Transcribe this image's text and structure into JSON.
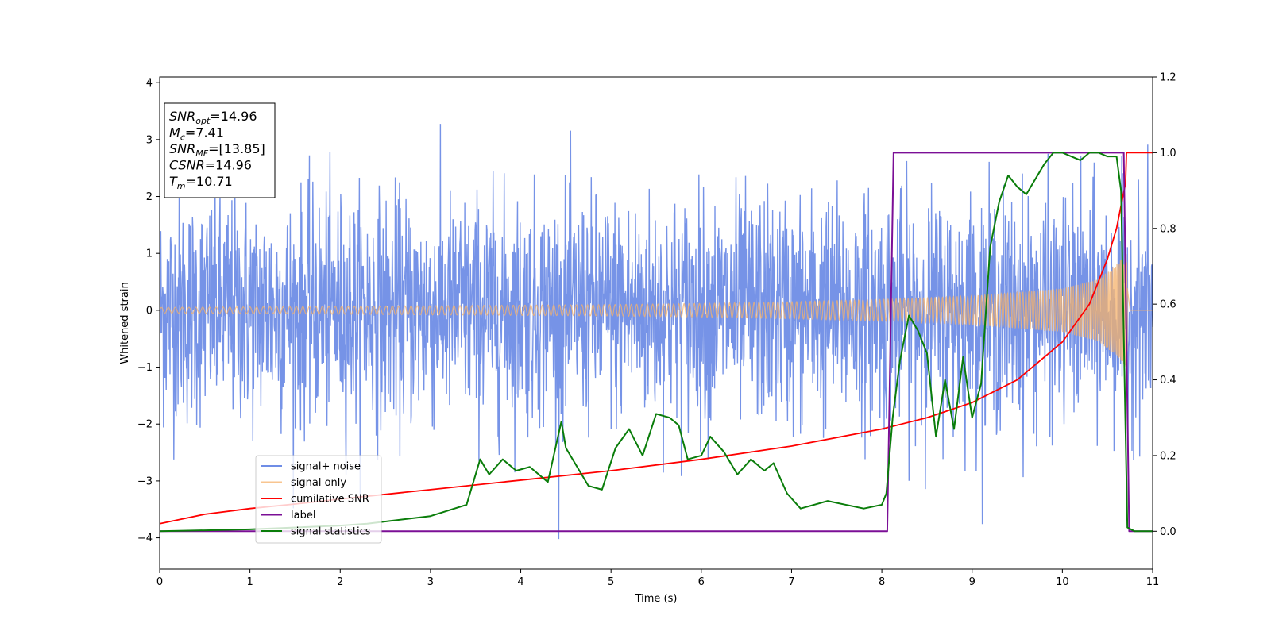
{
  "chart_data": {
    "type": "line",
    "xlabel": "Time (s)",
    "ylabel": "Whitened strain",
    "xlim": [
      0,
      11
    ],
    "ylim_left": [
      -4.55,
      4.1
    ],
    "ylim_right": [
      -0.1,
      1.2
    ],
    "x_ticks": [
      0,
      1,
      2,
      3,
      4,
      5,
      6,
      7,
      8,
      9,
      10,
      11
    ],
    "y_left_ticks": [
      -4,
      -3,
      -2,
      -1,
      0,
      1,
      2,
      3,
      4
    ],
    "y_right_ticks": [
      0.0,
      0.2,
      0.4,
      0.6,
      0.8,
      1.0,
      1.2
    ],
    "x_tick_labels": [
      "0",
      "1",
      "2",
      "3",
      "4",
      "5",
      "6",
      "7",
      "8",
      "9",
      "10",
      "11"
    ],
    "y_left_tick_labels": [
      "−4",
      "−3",
      "−2",
      "−1",
      "0",
      "1",
      "2",
      "3",
      "4"
    ],
    "y_right_tick_labels": [
      "0.0",
      "0.2",
      "0.4",
      "0.6",
      "0.8",
      "1.0",
      "1.2"
    ],
    "annotations": [
      {
        "name": "SNR",
        "sub": "opt",
        "value": "=14.96"
      },
      {
        "name": "M",
        "sub": "c",
        "value": "=7.41"
      },
      {
        "name": "SNR",
        "sub": "MF",
        "value": "=[13.85]"
      },
      {
        "name": "CSNR",
        "sub": "",
        "value": "=14.96"
      },
      {
        "name": "T",
        "sub": "m",
        "value": "=10.71"
      }
    ],
    "legend_position": "lower-left",
    "series": [
      {
        "name": "signal+ noise",
        "color": "#6f8de6",
        "axis": "left",
        "kind": "noisy strain",
        "std": 1.0,
        "range_approx": [
          -4.2,
          3.5
        ]
      },
      {
        "name": "signal only",
        "color": "#f5b26b",
        "axis": "left",
        "kind": "chirp",
        "amp_x": [
          0,
          1,
          2,
          3,
          4,
          5,
          6,
          7,
          8,
          9,
          10,
          10.4,
          10.6,
          10.71,
          10.75,
          11
        ],
        "amp_y": [
          0.05,
          0.06,
          0.07,
          0.08,
          0.09,
          0.1,
          0.12,
          0.15,
          0.19,
          0.25,
          0.38,
          0.55,
          0.8,
          1.0,
          0,
          0
        ]
      },
      {
        "name": "cumilative SNR",
        "color": "#ff0000",
        "axis": "right",
        "x": [
          0,
          0.5,
          1,
          1.5,
          2,
          3,
          4,
          5,
          6,
          7,
          8,
          8.5,
          9,
          9.5,
          10,
          10.3,
          10.5,
          10.6,
          10.7,
          10.71,
          11
        ],
        "y": [
          0.02,
          0.045,
          0.06,
          0.072,
          0.085,
          0.11,
          0.135,
          0.16,
          0.19,
          0.225,
          0.27,
          0.3,
          0.34,
          0.4,
          0.5,
          0.6,
          0.72,
          0.8,
          0.92,
          1.0,
          1.0
        ]
      },
      {
        "name": "label",
        "color": "#7b0f96",
        "axis": "right",
        "x": [
          0,
          8.06,
          8.13,
          10.68,
          10.74,
          11
        ],
        "y": [
          0,
          0,
          1,
          1,
          0,
          0
        ]
      },
      {
        "name": "signal statistics",
        "color": "#0a7d0a",
        "axis": "right",
        "x": [
          0,
          1,
          2,
          2.3,
          3,
          3.4,
          3.55,
          3.65,
          3.8,
          3.95,
          4.1,
          4.3,
          4.45,
          4.5,
          4.6,
          4.75,
          4.9,
          5.05,
          5.2,
          5.35,
          5.5,
          5.65,
          5.75,
          5.85,
          6.0,
          6.1,
          6.25,
          6.4,
          6.55,
          6.7,
          6.8,
          6.95,
          7.1,
          7.25,
          7.4,
          7.6,
          7.8,
          8.0,
          8.05,
          8.12,
          8.2,
          8.3,
          8.4,
          8.5,
          8.6,
          8.7,
          8.8,
          8.9,
          9.0,
          9.1,
          9.2,
          9.3,
          9.4,
          9.5,
          9.6,
          9.7,
          9.8,
          9.9,
          10.0,
          10.1,
          10.2,
          10.3,
          10.4,
          10.5,
          10.6,
          10.65,
          10.72,
          10.8,
          11
        ],
        "y": [
          0.0,
          0.005,
          0.015,
          0.02,
          0.04,
          0.07,
          0.19,
          0.15,
          0.19,
          0.16,
          0.17,
          0.13,
          0.29,
          0.22,
          0.18,
          0.12,
          0.11,
          0.22,
          0.27,
          0.2,
          0.31,
          0.3,
          0.28,
          0.19,
          0.2,
          0.25,
          0.21,
          0.15,
          0.19,
          0.16,
          0.18,
          0.1,
          0.06,
          0.07,
          0.08,
          0.07,
          0.06,
          0.07,
          0.1,
          0.3,
          0.45,
          0.57,
          0.53,
          0.47,
          0.25,
          0.4,
          0.27,
          0.46,
          0.3,
          0.39,
          0.75,
          0.87,
          0.94,
          0.91,
          0.89,
          0.93,
          0.97,
          1.0,
          1.0,
          0.99,
          0.98,
          1.0,
          1.0,
          0.99,
          0.99,
          0.9,
          0.01,
          0.0,
          0.0
        ]
      }
    ]
  }
}
